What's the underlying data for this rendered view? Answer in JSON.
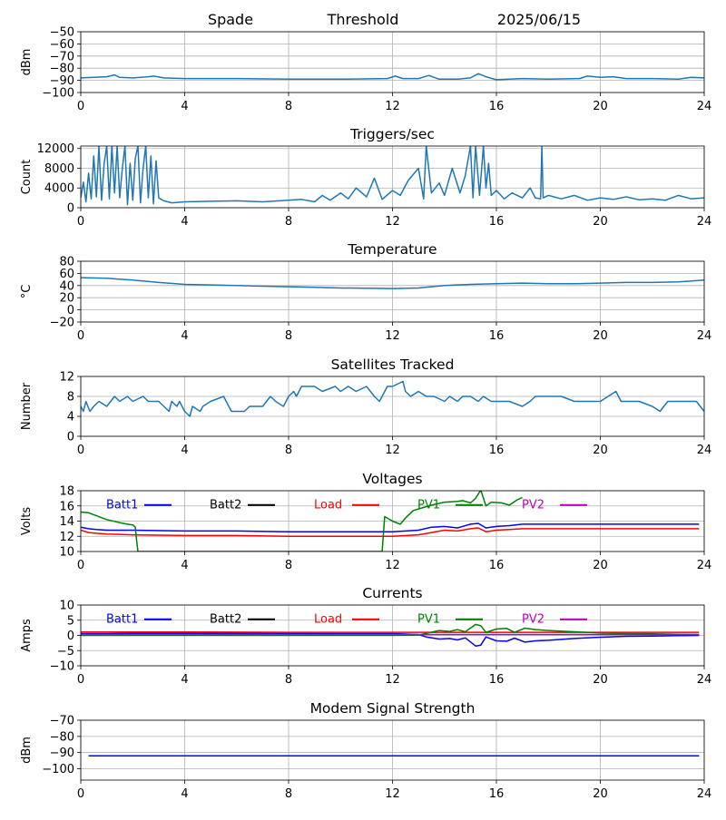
{
  "header": {
    "station": "Spade",
    "mode": "Threshold",
    "date": "2025/06/15"
  },
  "chart_data": [
    {
      "type": "line",
      "title": "",
      "xlabel": "",
      "ylabel": "dBm",
      "xlim": [
        0,
        24
      ],
      "ylim": [
        -100,
        -50
      ],
      "xticks": [
        0,
        4,
        8,
        12,
        16,
        20,
        24
      ],
      "yticks": [
        -100,
        -90,
        -80,
        -70,
        -60,
        -50
      ],
      "grid": true,
      "series": [
        {
          "color": "#1f77b4",
          "x": [
            0,
            0.5,
            1,
            1.3,
            1.5,
            2,
            2.6,
            2.8,
            3.2,
            4,
            6,
            8,
            10,
            11.8,
            12.1,
            12.4,
            13,
            13.4,
            13.8,
            14.5,
            15,
            15.3,
            15.6,
            16,
            17,
            18,
            19.2,
            19.5,
            20,
            20.5,
            21,
            22,
            23,
            23.5,
            24
          ],
          "y": [
            -88,
            -87.5,
            -87,
            -85.5,
            -87.5,
            -88,
            -87,
            -86.5,
            -88,
            -88.5,
            -88.5,
            -89,
            -89,
            -88.5,
            -86.5,
            -88.5,
            -88.5,
            -86,
            -89,
            -89,
            -88,
            -84.5,
            -87,
            -89.5,
            -88.5,
            -89,
            -88.5,
            -86.5,
            -87.5,
            -87,
            -88.5,
            -88.5,
            -89,
            -87.5,
            -88
          ]
        }
      ]
    },
    {
      "type": "line",
      "title": "Triggers/sec",
      "xlabel": "",
      "ylabel": "Count",
      "xlim": [
        0,
        24
      ],
      "ylim": [
        0,
        12500
      ],
      "xticks": [
        0,
        4,
        8,
        12,
        16,
        20,
        24
      ],
      "yticks": [
        0,
        4000,
        8000,
        12000
      ],
      "grid": true,
      "series": [
        {
          "color": "#1f77b4",
          "x": [
            0,
            0.1,
            0.2,
            0.3,
            0.4,
            0.5,
            0.6,
            0.7,
            0.8,
            0.9,
            1.0,
            1.1,
            1.2,
            1.3,
            1.4,
            1.5,
            1.6,
            1.7,
            1.8,
            1.9,
            2.0,
            2.1,
            2.2,
            2.3,
            2.4,
            2.5,
            2.6,
            2.7,
            2.8,
            2.9,
            3.0,
            3.2,
            3.5,
            4,
            5,
            6,
            7,
            8,
            8.5,
            9,
            9.3,
            9.6,
            10,
            10.3,
            10.6,
            11,
            11.3,
            11.6,
            12,
            12.3,
            12.6,
            13,
            13.2,
            13.3,
            13.5,
            13.8,
            14,
            14.3,
            14.6,
            14.8,
            15,
            15.1,
            15.2,
            15.35,
            15.5,
            15.6,
            15.7,
            15.8,
            16,
            16.3,
            16.6,
            17,
            17.3,
            17.5,
            17.7,
            17.75,
            17.8,
            18,
            18.5,
            19,
            19.5,
            20,
            20.5,
            21,
            21.5,
            22,
            22.5,
            23,
            23.5,
            24
          ],
          "y": [
            2000,
            5200,
            1200,
            7000,
            1800,
            10500,
            2200,
            12500,
            1500,
            9000,
            12500,
            1800,
            12500,
            3000,
            12500,
            2000,
            8000,
            12500,
            600,
            9000,
            1500,
            10000,
            12500,
            1000,
            8000,
            12500,
            2000,
            10500,
            800,
            9500,
            2000,
            1400,
            1000,
            1200,
            1300,
            1400,
            1200,
            1500,
            1700,
            1200,
            2500,
            1500,
            3000,
            1800,
            4000,
            2200,
            6000,
            1700,
            3500,
            2500,
            5500,
            8000,
            1800,
            12500,
            3000,
            5000,
            2500,
            8000,
            3000,
            6500,
            12500,
            2000,
            12500,
            2500,
            12500,
            4000,
            9000,
            2500,
            3500,
            1800,
            3000,
            2000,
            4000,
            2000,
            1800,
            12500,
            2000,
            2500,
            1800,
            2500,
            1500,
            2000,
            1700,
            2200,
            1600,
            1800,
            1500,
            2500,
            1800,
            2000
          ]
        }
      ]
    },
    {
      "type": "line",
      "title": "Temperature",
      "xlabel": "",
      "ylabel": "°C",
      "xlim": [
        0,
        24
      ],
      "ylim": [
        -20,
        80
      ],
      "xticks": [
        0,
        4,
        8,
        12,
        16,
        20,
        24
      ],
      "yticks": [
        -20,
        0,
        20,
        40,
        60,
        80
      ],
      "grid": true,
      "series": [
        {
          "color": "#1f77b4",
          "x": [
            0,
            1,
            2,
            3,
            4,
            5,
            6,
            7,
            8,
            9,
            10,
            11,
            12,
            13,
            14,
            15,
            16,
            17,
            18,
            19,
            20,
            21,
            22,
            23,
            24
          ],
          "y": [
            53,
            52,
            49,
            45,
            42,
            41,
            40,
            39,
            38,
            37,
            36,
            35.5,
            35,
            36,
            40,
            42,
            43,
            44,
            43,
            43,
            44,
            45,
            45,
            46,
            49
          ]
        }
      ]
    },
    {
      "type": "line",
      "title": "Satellites Tracked",
      "xlabel": "",
      "ylabel": "Number",
      "xlim": [
        0,
        24
      ],
      "ylim": [
        0,
        12
      ],
      "xticks": [
        0,
        4,
        8,
        12,
        16,
        20,
        24
      ],
      "yticks": [
        0,
        4,
        8,
        12
      ],
      "grid": true,
      "series": [
        {
          "color": "#1f77b4",
          "x": [
            0,
            0.1,
            0.2,
            0.35,
            0.5,
            0.7,
            1.0,
            1.3,
            1.5,
            1.8,
            2.0,
            2.4,
            2.6,
            3.0,
            3.4,
            3.5,
            3.7,
            3.8,
            4.0,
            4.2,
            4.3,
            4.6,
            4.7,
            5.0,
            5.5,
            5.8,
            6.0,
            6.3,
            6.5,
            7.0,
            7.3,
            7.5,
            7.8,
            8.0,
            8.2,
            8.3,
            8.5,
            9.0,
            9.3,
            9.8,
            10.0,
            10.3,
            10.6,
            11.0,
            11.3,
            11.5,
            11.8,
            12.0,
            12.4,
            12.5,
            12.7,
            13.0,
            13.3,
            13.6,
            14.0,
            14.2,
            14.5,
            14.7,
            15.0,
            15.3,
            15.5,
            15.8,
            16.0,
            16.5,
            17.0,
            17.3,
            17.5,
            18.0,
            18.5,
            19.0,
            19.3,
            19.5,
            20.0,
            20.3,
            20.6,
            20.8,
            21.0,
            21.5,
            22.0,
            22.3,
            22.6,
            23.0,
            23.3,
            23.7,
            24.0
          ],
          "y": [
            6,
            5,
            7,
            5,
            6,
            7,
            6,
            8,
            7,
            8,
            7,
            8,
            7,
            7,
            5,
            7,
            6,
            7,
            5,
            4,
            6,
            5,
            6,
            7,
            8,
            5,
            5,
            5,
            6,
            6,
            8,
            7,
            6,
            8,
            9,
            8,
            10,
            10,
            9,
            10,
            9,
            10,
            9,
            10,
            8,
            7,
            10,
            10,
            11,
            9,
            8,
            9,
            8,
            8,
            7,
            8,
            7,
            8,
            8,
            7,
            8,
            7,
            7,
            7,
            6,
            7,
            8,
            8,
            8,
            7,
            7,
            7,
            7,
            8,
            9,
            7,
            7,
            7,
            6,
            5,
            7,
            7,
            7,
            7,
            5
          ]
        }
      ]
    },
    {
      "type": "line",
      "title": "Voltages",
      "xlabel": "",
      "ylabel": "Volts",
      "xlim": [
        0,
        24
      ],
      "ylim": [
        10,
        18
      ],
      "xticks": [
        0,
        4,
        8,
        12,
        16,
        20,
        24
      ],
      "yticks": [
        10,
        12,
        14,
        16,
        18
      ],
      "grid": true,
      "legend": [
        "Batt1",
        "Batt2",
        "Load",
        "PV1",
        "PV2"
      ],
      "legend_placement": "top",
      "series": [
        {
          "name": "Batt1",
          "color": "#0000ff",
          "x": [
            0,
            0.3,
            0.6,
            1,
            2,
            4,
            6,
            8,
            10,
            12,
            13,
            13.5,
            14,
            14.5,
            15,
            15.3,
            15.6,
            16,
            16.5,
            17,
            18,
            20,
            22,
            23.8
          ],
          "y": [
            13.2,
            13.0,
            12.9,
            12.8,
            12.8,
            12.7,
            12.7,
            12.6,
            12.6,
            12.6,
            12.8,
            13.2,
            13.3,
            13.1,
            13.6,
            13.7,
            13.1,
            13.3,
            13.4,
            13.6,
            13.6,
            13.6,
            13.6,
            13.6
          ]
        },
        {
          "name": "Load",
          "color": "#ff0000",
          "x": [
            0,
            0.3,
            0.6,
            1,
            2,
            4,
            6,
            8,
            10,
            12,
            13,
            13.5,
            14,
            14.5,
            15,
            15.3,
            15.6,
            16,
            16.5,
            17,
            18,
            20,
            22,
            23.8
          ],
          "y": [
            12.8,
            12.5,
            12.4,
            12.3,
            12.2,
            12.1,
            12.1,
            12.0,
            12.0,
            12.0,
            12.2,
            12.5,
            12.8,
            12.7,
            13.0,
            13.1,
            12.6,
            12.8,
            12.9,
            13.0,
            13.0,
            13.0,
            13.0,
            13.0
          ]
        },
        {
          "name": "PV1",
          "color": "#008000",
          "x": [
            0,
            0.3,
            0.6,
            1.0,
            1.5,
            1.8,
            2.0,
            2.1,
            2.15,
            2.2,
            11.6,
            11.7,
            12.0,
            12.3,
            12.5,
            12.8,
            13.0,
            13.5,
            14.0,
            14.5,
            14.7,
            15.0,
            15.2,
            15.4,
            15.6,
            15.8,
            16.2,
            16.5,
            16.8,
            17.0
          ],
          "y": [
            15.2,
            15.1,
            14.7,
            14.2,
            13.8,
            13.6,
            13.5,
            13.2,
            11.5,
            10,
            10,
            14.6,
            14.0,
            13.6,
            14.4,
            15.4,
            15.6,
            16.1,
            16.5,
            16.6,
            16.7,
            16.4,
            17.0,
            18.1,
            16.0,
            16.5,
            16.4,
            16.1,
            16.8,
            17.1
          ]
        }
      ]
    },
    {
      "type": "line",
      "title": "Currents",
      "xlabel": "",
      "ylabel": "Amps",
      "xlim": [
        0,
        24
      ],
      "ylim": [
        -10,
        10
      ],
      "xticks": [
        0,
        4,
        8,
        12,
        16,
        20,
        24
      ],
      "yticks": [
        -10,
        -5,
        0,
        5,
        10
      ],
      "grid": true,
      "legend": [
        "Batt1",
        "Batt2",
        "Load",
        "PV1",
        "PV2"
      ],
      "legend_placement": "top",
      "series": [
        {
          "name": "Batt1",
          "color": "#0000ff",
          "x": [
            0,
            1,
            2,
            4,
            6,
            8,
            10,
            12,
            13,
            13.3,
            13.8,
            14.2,
            14.5,
            14.8,
            15.2,
            15.4,
            15.6,
            16.0,
            16.4,
            16.7,
            17.1,
            17.5,
            18,
            19,
            20,
            21,
            22,
            23,
            23.8
          ],
          "y": [
            0.6,
            0.6,
            0.7,
            0.7,
            0.7,
            0.7,
            0.6,
            0.6,
            0.3,
            -0.5,
            -1.2,
            -1.0,
            -1.5,
            -0.8,
            -3.5,
            -3.2,
            -0.5,
            -1.8,
            -1.9,
            -0.9,
            -2.2,
            -1.8,
            -1.6,
            -1.0,
            -0.6,
            -0.3,
            -0.2,
            -0.1,
            0
          ]
        },
        {
          "name": "Load",
          "color": "#ff0000",
          "x": [
            0,
            2,
            4,
            8,
            12,
            16,
            20,
            23.8
          ],
          "y": [
            1.1,
            1.1,
            1.1,
            1.0,
            1.0,
            1.0,
            1.0,
            1.0
          ]
        },
        {
          "name": "PV1",
          "color": "#008000",
          "x": [
            0,
            12,
            13,
            13.3,
            13.8,
            14.2,
            14.5,
            14.8,
            15.2,
            15.4,
            15.6,
            16.0,
            16.4,
            16.7,
            17.1,
            17.5,
            18,
            19,
            20,
            21,
            22,
            23,
            23.8
          ],
          "y": [
            0,
            0,
            0.1,
            0.7,
            1.6,
            1.3,
            1.9,
            1.2,
            3.6,
            3.2,
            1.0,
            2.1,
            2.3,
            1.0,
            2.4,
            1.9,
            1.6,
            1.2,
            0.8,
            0.6,
            0.5,
            0.4,
            0.3
          ]
        },
        {
          "name": "PV2",
          "color": "#bf00bf",
          "x": [
            0,
            4,
            8,
            12,
            16,
            20,
            23.8
          ],
          "y": [
            0.3,
            0.3,
            0.3,
            0.3,
            0.3,
            0.3,
            0.3
          ]
        }
      ]
    },
    {
      "type": "line",
      "title": "Modem Signal Strength",
      "xlabel": "",
      "ylabel": "dBm",
      "xlim": [
        0,
        24
      ],
      "ylim": [
        -107,
        -70
      ],
      "xticks": [
        0,
        4,
        8,
        12,
        16,
        20,
        24
      ],
      "yticks": [
        -100,
        -90,
        -80,
        -70
      ],
      "grid": true,
      "series": [
        {
          "color": "#0000ff",
          "x": [
            0.3,
            23.8
          ],
          "y": [
            -92,
            -92
          ]
        }
      ]
    }
  ],
  "colors": {
    "line_default": "#1f77b4",
    "grid": "#b0b0b0",
    "axes": "#000000",
    "legend": {
      "Batt1": "#0000ff",
      "Batt2": "#000000",
      "Load": "#ff0000",
      "PV1": "#008000",
      "PV2": "#bf00bf"
    }
  }
}
